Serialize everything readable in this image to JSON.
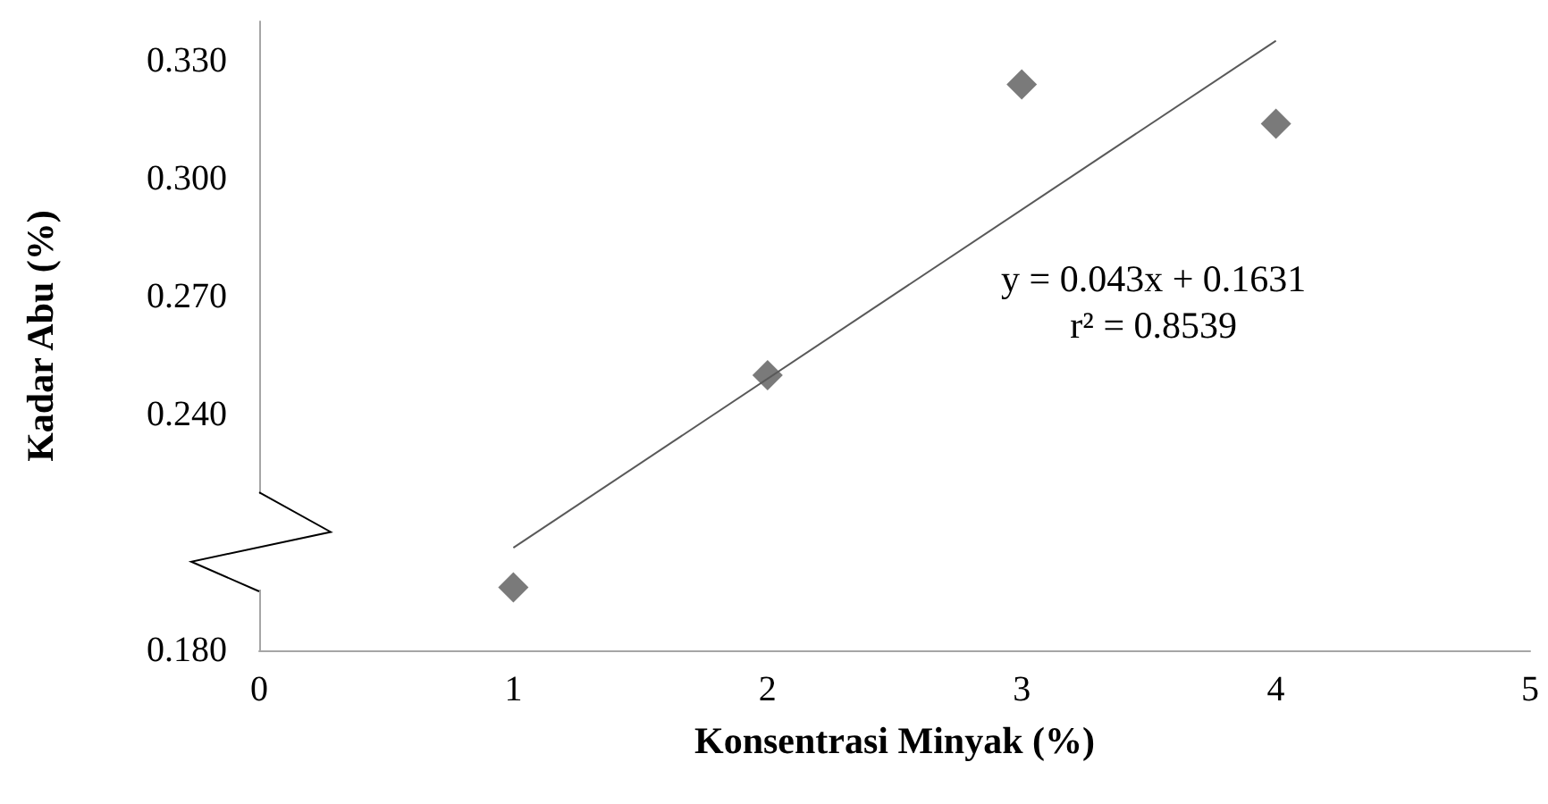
{
  "chart_data": {
    "type": "scatter",
    "xlabel": "Konsentrasi Minyak (%)",
    "ylabel": "Kadar Abu (%)",
    "x": [
      1,
      2,
      3,
      4
    ],
    "series": [
      {
        "color": "#595959",
        "values": [
          0.196,
          0.25,
          0.324,
          0.314
        ],
        "marker": "diamond"
      },
      {
        "type": "line",
        "color": "#595959",
        "x": [
          1,
          4
        ],
        "values": [
          0.2061,
          0.3351
        ],
        "marker": "none",
        "line_style": "solid"
      }
    ],
    "xlim": [
      0,
      5
    ],
    "xticks": [
      0,
      1,
      2,
      3,
      4,
      5
    ],
    "ylim": [
      0.18,
      0.34
    ],
    "yticks": [
      {
        "value": 0.18,
        "label": "0.180"
      },
      {
        "value": 0.24,
        "label": "0.240"
      },
      {
        "value": 0.27,
        "label": "0.270"
      },
      {
        "value": 0.3,
        "label": "0.300"
      },
      {
        "value": 0.33,
        "label": "0.330"
      }
    ],
    "annotations": [
      "y = 0.043x + 0.1631",
      "r² = 0.8539"
    ],
    "grid": false
  }
}
